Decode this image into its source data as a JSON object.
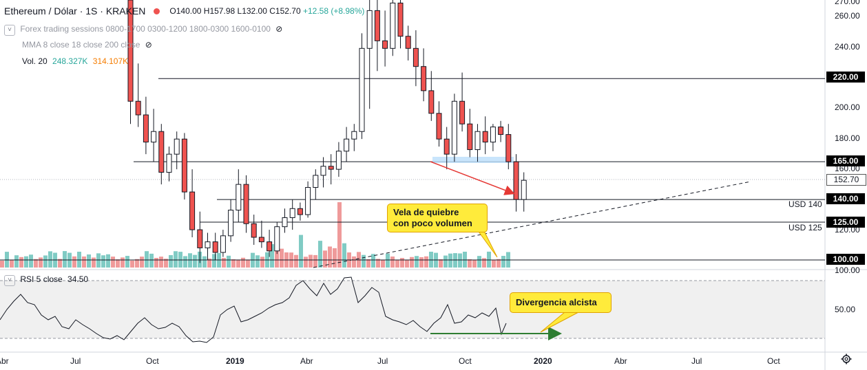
{
  "header": {
    "symbol": "Ethereum / Dólar · 1S · KRAKEN",
    "open": "O140.00",
    "high": "H157.98",
    "low": "L132.00",
    "close": "C152.70",
    "change": "+12.58 (+8.98%)"
  },
  "indicators": {
    "sessions": "Forex trading sessions 0800-1700 0300-1200 1800-0300 1600-0100",
    "mma": "MMA 8 close 18 close 200 close",
    "vol_label": "Vol. 20",
    "vol_v1": "248.327K",
    "vol_v2": "314.107K",
    "rsi_label": "RSI 5 close",
    "rsi_value": "34.50"
  },
  "price_axis": [
    "270.00",
    "260.00",
    "240.00",
    "220.00",
    "200.00",
    "180.00",
    "165.00",
    "160.00",
    "152.70",
    "140.00",
    "125.00",
    "120.00",
    "100.00"
  ],
  "price_tags": {
    "p220": "220.00",
    "p165": "165.00",
    "p1527": "152.70",
    "p140": "140.00",
    "p125": "125.00",
    "p100": "100.00"
  },
  "rsi_axis": [
    "100.00",
    "50.00"
  ],
  "time_axis": [
    "Abr",
    "Jul",
    "Oct",
    "2019",
    "Abr",
    "Jul",
    "Oct",
    "2020",
    "Abr",
    "Jul",
    "Oct"
  ],
  "levels": {
    "usd140": "USD 140",
    "usd125": "USD 125"
  },
  "callouts": {
    "vela_line1": "Vela de quiebre",
    "vela_line2": "con poco volumen",
    "divergencia": "Divergencia alcista"
  },
  "colors": {
    "up": "#26a69a",
    "down": "#ef5350",
    "callout": "#ffeb3b",
    "arrow_red": "#e53935",
    "arrow_green": "#2e7d32"
  },
  "chart_data": {
    "type": "candlestick",
    "title": "Ethereum / Dólar · 1S · KRAKEN",
    "ylim": [
      96,
      272
    ],
    "horizontal_levels": [
      220,
      165,
      140,
      125,
      100
    ],
    "candles": [
      [
        272,
        300,
        190,
        205
      ],
      [
        205,
        230,
        188,
        196
      ],
      [
        196,
        208,
        170,
        178
      ],
      [
        178,
        200,
        165,
        185
      ],
      [
        185,
        190,
        150,
        158
      ],
      [
        158,
        175,
        152,
        170
      ],
      [
        170,
        185,
        160,
        180
      ],
      [
        180,
        184,
        140,
        145
      ],
      [
        145,
        160,
        115,
        120
      ],
      [
        120,
        132,
        98,
        108
      ],
      [
        108,
        118,
        100,
        112
      ],
      [
        112,
        118,
        100,
        105
      ],
      [
        105,
        120,
        102,
        116
      ],
      [
        116,
        140,
        112,
        133
      ],
      [
        133,
        160,
        125,
        150
      ],
      [
        150,
        156,
        118,
        124
      ],
      [
        124,
        130,
        110,
        115
      ],
      [
        115,
        126,
        108,
        112
      ],
      [
        112,
        120,
        102,
        106
      ],
      [
        106,
        125,
        104,
        122
      ],
      [
        122,
        134,
        118,
        128
      ],
      [
        128,
        140,
        120,
        134
      ],
      [
        134,
        138,
        126,
        130
      ],
      [
        130,
        152,
        128,
        148
      ],
      [
        148,
        160,
        140,
        156
      ],
      [
        156,
        168,
        148,
        162
      ],
      [
        162,
        170,
        150,
        160
      ],
      [
        160,
        178,
        155,
        172
      ],
      [
        172,
        188,
        165,
        180
      ],
      [
        180,
        190,
        172,
        185
      ],
      [
        185,
        250,
        180,
        240
      ],
      [
        240,
        275,
        200,
        265
      ],
      [
        265,
        272,
        225,
        245
      ],
      [
        245,
        265,
        228,
        240
      ],
      [
        240,
        272,
        235,
        270
      ],
      [
        270,
        300,
        240,
        248
      ],
      [
        248,
        255,
        232,
        240
      ],
      [
        240,
        252,
        215,
        228
      ],
      [
        228,
        240,
        205,
        212
      ],
      [
        212,
        225,
        192,
        197
      ],
      [
        197,
        205,
        175,
        180
      ],
      [
        180,
        188,
        160,
        170
      ],
      [
        170,
        210,
        165,
        205
      ],
      [
        205,
        224,
        185,
        190
      ],
      [
        190,
        200,
        168,
        173
      ],
      [
        173,
        190,
        165,
        185
      ],
      [
        185,
        195,
        170,
        178
      ],
      [
        178,
        190,
        172,
        188
      ],
      [
        188,
        192,
        178,
        183
      ],
      [
        183,
        190,
        160,
        165
      ],
      [
        165,
        170,
        132,
        140
      ],
      [
        140,
        158,
        132,
        152.7
      ]
    ]
  }
}
